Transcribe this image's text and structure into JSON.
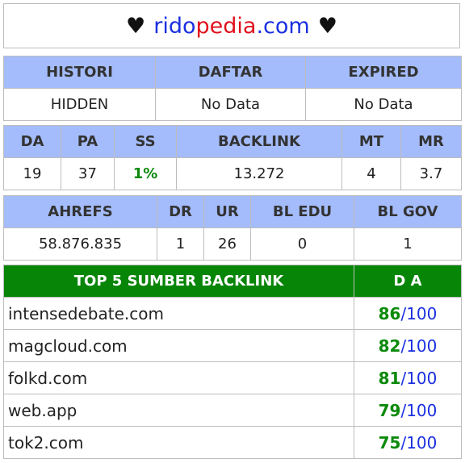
{
  "header": {
    "heart_left": "♥",
    "heart_right": "♥",
    "site_part1": "rido",
    "site_part2": "pedia",
    "site_part3": ".com"
  },
  "table1": {
    "headers": [
      "HISTORI",
      "DAFTAR",
      "EXPIRED"
    ],
    "values": [
      "HIDDEN",
      "No Data",
      "No Data"
    ]
  },
  "table2": {
    "headers": [
      "DA",
      "PA",
      "SS",
      "BACKLINK",
      "MT",
      "MR"
    ],
    "values": [
      "19",
      "37",
      "1%",
      "13.272",
      "4",
      "3.7"
    ]
  },
  "table3": {
    "headers": [
      "AHREFS",
      "DR",
      "UR",
      "BL EDU",
      "BL GOV"
    ],
    "values": [
      "58.876.835",
      "1",
      "26",
      "0",
      "1"
    ]
  },
  "table4": {
    "headers": [
      "TOP 5 SUMBER BACKLINK",
      "D A"
    ],
    "rows": [
      {
        "site": "intensedebate.com",
        "da": "86",
        "max": "100"
      },
      {
        "site": "magcloud.com",
        "da": "82",
        "max": "100"
      },
      {
        "site": "folkd.com",
        "da": "81",
        "max": "100"
      },
      {
        "site": "web.app",
        "da": "79",
        "max": "100"
      },
      {
        "site": "tok2.com",
        "da": "75",
        "max": "100"
      }
    ],
    "separator": "/"
  },
  "colors": {
    "header_blue": "#a4bcfb",
    "header_green": "#078507",
    "accent_green": "#0b8a0b",
    "accent_blue": "#1a2fe0",
    "accent_red": "#e0101d"
  }
}
